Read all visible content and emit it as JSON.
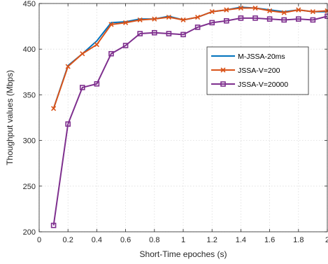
{
  "chart_data": {
    "type": "line",
    "xlabel": "Short-Time epoches (s)",
    "ylabel": "Thoughput values (Mbps)",
    "xlim": [
      0,
      2
    ],
    "ylim": [
      200,
      450
    ],
    "xticks": [
      0,
      0.2,
      0.4,
      0.6,
      0.8,
      1,
      1.2,
      1.4,
      1.6,
      1.8,
      2
    ],
    "xtick_labels": [
      "0",
      "0.2",
      "0.4",
      "0.6",
      "0.8",
      "1",
      "1.2",
      "1.4",
      "1.6",
      "1.8",
      "2"
    ],
    "yticks": [
      200,
      250,
      300,
      350,
      400,
      450
    ],
    "ytick_labels": [
      "200",
      "250",
      "300",
      "350",
      "400",
      "450"
    ],
    "grid": true,
    "legend_position": "upper-right",
    "x": [
      0.1,
      0.2,
      0.3,
      0.4,
      0.5,
      0.6,
      0.7,
      0.8,
      0.9,
      1.0,
      1.1,
      1.2,
      1.3,
      1.4,
      1.5,
      1.6,
      1.7,
      1.8,
      1.9,
      2.0
    ],
    "series": [
      {
        "name": "M-JSSA-20ms",
        "color": "#0072bd",
        "marker": "none",
        "values": [
          335,
          382,
          395,
          409,
          429,
          430,
          433,
          433,
          436,
          432,
          435,
          441,
          443,
          446,
          445,
          443,
          441,
          443,
          441,
          441
        ]
      },
      {
        "name": "JSSA-V=200",
        "color": "#d95319",
        "marker": "x",
        "values": [
          335,
          381,
          395,
          405,
          427,
          429,
          432,
          433,
          435,
          432,
          435,
          441,
          443,
          445,
          445,
          442,
          440,
          443,
          441,
          442
        ]
      },
      {
        "name": "JSSA-V=20000",
        "color": "#7e2f8e",
        "marker": "square",
        "values": [
          207,
          318,
          358,
          362,
          395,
          404,
          417,
          418,
          417,
          416,
          424,
          429,
          431,
          434,
          434,
          433,
          432,
          433,
          432,
          436
        ]
      }
    ]
  }
}
